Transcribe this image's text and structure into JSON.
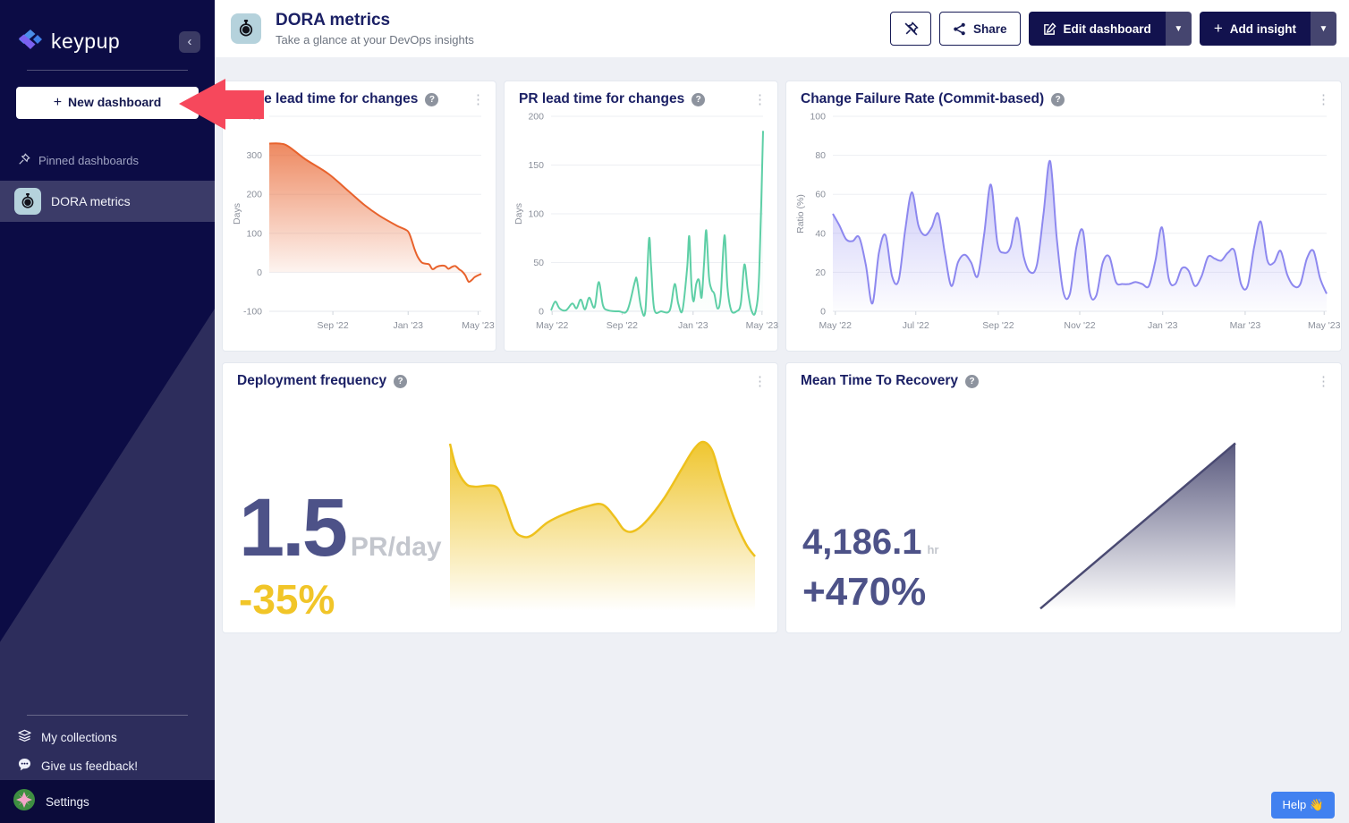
{
  "icons": {
    "plus": "+",
    "caret_down": "▼",
    "kebab": "⋮",
    "collapse_chevron": "‹",
    "help_glyph": "?"
  },
  "colors": {
    "sidebar_bg": "#0c0c45",
    "sidebar_diag": "#2d2d5c",
    "accent_navy": "#12124e",
    "help_blue": "#4181f0",
    "tile_blue": "#b5d2dc"
  },
  "overlay": {
    "arrow_color": "#f6485c"
  },
  "sidebar": {
    "logo_text": "keypup",
    "new_dashboard_label": "New dashboard",
    "pinned_section_label": "Pinned dashboards",
    "pinned_items": [
      {
        "label": "DORA metrics"
      }
    ],
    "footer_items": [
      {
        "label": "My collections"
      },
      {
        "label": "Give us feedback!"
      }
    ],
    "settings_label": "Settings"
  },
  "header": {
    "title": "DORA metrics",
    "subtitle": "Take a glance at your DevOps insights",
    "share_label": "Share",
    "edit_label": "Edit dashboard",
    "add_label": "Add insight"
  },
  "help": {
    "label": "Help 👋"
  },
  "chart_data": [
    {
      "type": "area",
      "title": "Code lead time for changes",
      "ylabel": "Days",
      "color": "#e8622c",
      "fill_top": 0.75,
      "ylim": [
        -100,
        400
      ],
      "yticks": [
        400,
        300,
        200,
        100,
        0,
        -100
      ],
      "xticks": [
        {
          "pos": 0.3,
          "label": "Sep '22"
        },
        {
          "pos": 0.655,
          "label": "Jan '23"
        },
        {
          "pos": 0.985,
          "label": "May '23"
        }
      ],
      "points": [
        [
          0,
          330
        ],
        [
          0.05,
          330
        ],
        [
          0.09,
          323
        ],
        [
          0.17,
          290
        ],
        [
          0.28,
          252
        ],
        [
          0.38,
          205
        ],
        [
          0.45,
          172
        ],
        [
          0.52,
          145
        ],
        [
          0.6,
          120
        ],
        [
          0.64,
          110
        ],
        [
          0.66,
          100
        ],
        [
          0.685,
          60
        ],
        [
          0.7,
          40
        ],
        [
          0.72,
          25
        ],
        [
          0.74,
          22
        ],
        [
          0.755,
          20
        ],
        [
          0.77,
          8
        ],
        [
          0.79,
          14
        ],
        [
          0.81,
          17
        ],
        [
          0.83,
          16
        ],
        [
          0.845,
          9
        ],
        [
          0.862,
          14
        ],
        [
          0.878,
          16
        ],
        [
          0.895,
          8
        ],
        [
          0.91,
          2
        ],
        [
          0.925,
          -8
        ],
        [
          0.94,
          -24
        ],
        [
          0.955,
          -20
        ],
        [
          0.97,
          -12
        ],
        [
          1,
          -4
        ]
      ]
    },
    {
      "type": "area",
      "title": "PR lead time for changes",
      "ylabel": "Days",
      "color": "#5ecfa6",
      "fill_top": 0.12,
      "ylim": [
        0,
        200
      ],
      "yticks": [
        200,
        150,
        100,
        50,
        0
      ],
      "xticks": [
        {
          "pos": 0.005,
          "label": "May '22"
        },
        {
          "pos": 0.335,
          "label": "Sep '22"
        },
        {
          "pos": 0.67,
          "label": "Jan '23"
        },
        {
          "pos": 0.995,
          "label": "May '23"
        }
      ],
      "points": [
        [
          0,
          1
        ],
        [
          0.02,
          10
        ],
        [
          0.04,
          3
        ],
        [
          0.07,
          1
        ],
        [
          0.1,
          8
        ],
        [
          0.12,
          3
        ],
        [
          0.14,
          12
        ],
        [
          0.16,
          2
        ],
        [
          0.18,
          14
        ],
        [
          0.205,
          4
        ],
        [
          0.225,
          30
        ],
        [
          0.245,
          6
        ],
        [
          0.27,
          1
        ],
        [
          0.32,
          0
        ],
        [
          0.36,
          1
        ],
        [
          0.395,
          30
        ],
        [
          0.405,
          32
        ],
        [
          0.425,
          4
        ],
        [
          0.445,
          1
        ],
        [
          0.462,
          74
        ],
        [
          0.472,
          45
        ],
        [
          0.487,
          2
        ],
        [
          0.52,
          0
        ],
        [
          0.56,
          1
        ],
        [
          0.583,
          28
        ],
        [
          0.6,
          8
        ],
        [
          0.62,
          1
        ],
        [
          0.642,
          45
        ],
        [
          0.652,
          77
        ],
        [
          0.662,
          28
        ],
        [
          0.672,
          10
        ],
        [
          0.685,
          28
        ],
        [
          0.698,
          32
        ],
        [
          0.71,
          14
        ],
        [
          0.722,
          50
        ],
        [
          0.732,
          83
        ],
        [
          0.745,
          35
        ],
        [
          0.758,
          22
        ],
        [
          0.77,
          18
        ],
        [
          0.785,
          3
        ],
        [
          0.8,
          15
        ],
        [
          0.818,
          78
        ],
        [
          0.832,
          25
        ],
        [
          0.85,
          1
        ],
        [
          0.875,
          0
        ],
        [
          0.895,
          8
        ],
        [
          0.912,
          48
        ],
        [
          0.928,
          22
        ],
        [
          0.945,
          1
        ],
        [
          0.965,
          0
        ],
        [
          0.982,
          40
        ],
        [
          1,
          185
        ]
      ]
    },
    {
      "type": "area",
      "title": "Change Failure Rate (Commit-based)",
      "ylabel": "Ratio (%)",
      "color": "#8d88ef",
      "fill_top": 0.5,
      "ylim": [
        0,
        100
      ],
      "yticks": [
        100,
        80,
        60,
        40,
        20,
        0
      ],
      "xticks": [
        {
          "pos": 0.005,
          "label": "May '22"
        },
        {
          "pos": 0.168,
          "label": "Jul '22"
        },
        {
          "pos": 0.335,
          "label": "Sep '22"
        },
        {
          "pos": 0.5,
          "label": "Nov '22"
        },
        {
          "pos": 0.668,
          "label": "Jan '23"
        },
        {
          "pos": 0.835,
          "label": "Mar '23"
        },
        {
          "pos": 0.995,
          "label": "May '23"
        }
      ],
      "values": [
        50,
        44,
        37,
        36,
        38,
        24,
        4,
        30,
        39,
        18,
        16,
        42,
        61,
        44,
        39,
        43,
        50,
        30,
        13,
        25,
        29,
        25,
        18,
        40,
        65,
        35,
        30,
        33,
        48,
        28,
        20,
        24,
        50,
        77,
        38,
        10,
        9,
        33,
        41,
        10,
        8,
        25,
        28,
        15,
        14,
        14,
        15,
        14,
        13,
        26,
        43,
        17,
        14,
        22,
        21,
        13,
        18,
        28,
        27,
        26,
        30,
        31,
        14,
        13,
        33,
        46,
        26,
        25,
        31,
        19,
        13,
        14,
        27,
        31,
        17,
        9
      ]
    },
    {
      "type": "kpi",
      "title": "Deployment frequency",
      "value": "1.5",
      "unit": "PR/day",
      "delta": "-35%",
      "color": "#eec11d",
      "delta_color": "#f1c528",
      "value_color": "#4d5288",
      "ylim": [
        0,
        1.05
      ],
      "points": [
        [
          0,
          0.96
        ],
        [
          0.02,
          0.83
        ],
        [
          0.05,
          0.74
        ],
        [
          0.08,
          0.72
        ],
        [
          0.15,
          0.72
        ],
        [
          0.18,
          0.62
        ],
        [
          0.21,
          0.48
        ],
        [
          0.24,
          0.44
        ],
        [
          0.27,
          0.45
        ],
        [
          0.32,
          0.52
        ],
        [
          0.38,
          0.57
        ],
        [
          0.45,
          0.61
        ],
        [
          0.5,
          0.62
        ],
        [
          0.54,
          0.55
        ],
        [
          0.57,
          0.48
        ],
        [
          0.6,
          0.47
        ],
        [
          0.64,
          0.52
        ],
        [
          0.7,
          0.65
        ],
        [
          0.76,
          0.82
        ],
        [
          0.8,
          0.93
        ],
        [
          0.83,
          0.97
        ],
        [
          0.86,
          0.92
        ],
        [
          0.89,
          0.75
        ],
        [
          0.93,
          0.55
        ],
        [
          0.97,
          0.4
        ],
        [
          1,
          0.33
        ]
      ]
    },
    {
      "type": "kpi",
      "title": "Mean Time To Recovery",
      "value": "4,186.1",
      "unit": "hr",
      "delta": "+470%",
      "color": "#4a4a72",
      "delta_color": "#4d5288",
      "value_color": "#4d5288",
      "ylim": [
        0,
        1.05
      ],
      "smooth": false,
      "points": [
        [
          0,
          0.03
        ],
        [
          1,
          1.0
        ]
      ]
    }
  ]
}
